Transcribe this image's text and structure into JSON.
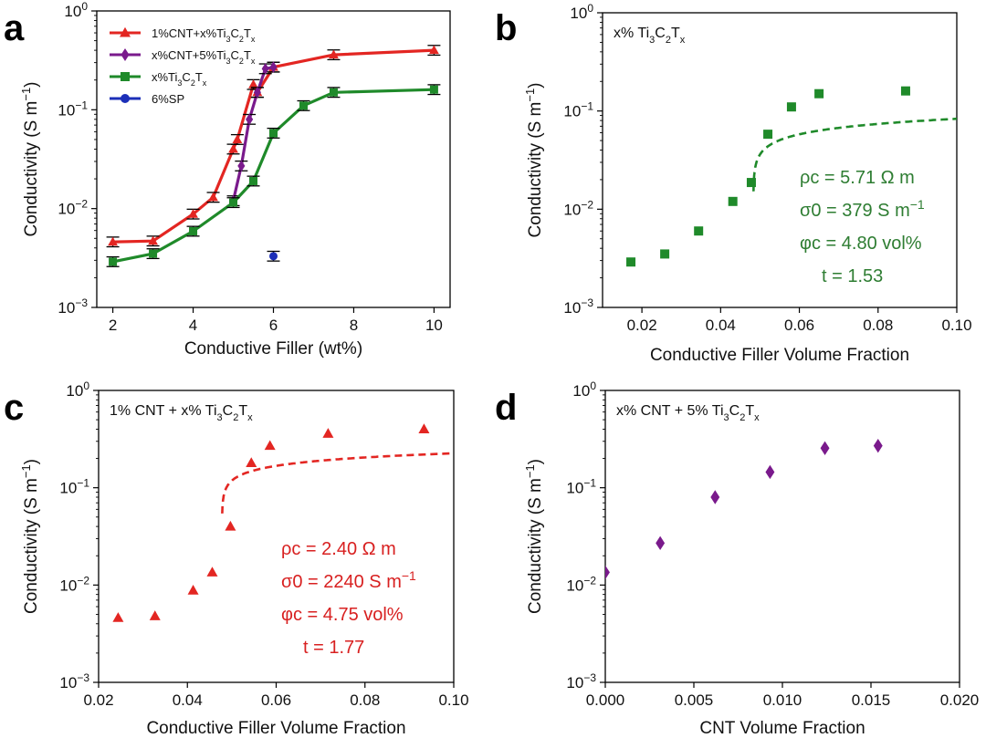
{
  "colors": {
    "red": "#e32622",
    "purple": "#7a1a8c",
    "green": "#1f8a2a",
    "blue": "#1c2fb8",
    "green_text": "#2e7d32",
    "red_text": "#d82020"
  },
  "chart_data": [
    {
      "id": "a",
      "panel_label": "a",
      "type": "line",
      "xlabel": "Conductive Filler (wt%)",
      "ylabel": "Conductivity (S m⁻¹)",
      "xlim": [
        1.6,
        10.4
      ],
      "ylim": [
        0.001,
        1
      ],
      "yscale": "log",
      "xticks": [
        2,
        4,
        6,
        8,
        10
      ],
      "xtick_labels": [
        "2",
        "4",
        "6",
        "8",
        "10"
      ],
      "legend_position": "top-left",
      "series": [
        {
          "name": "1%CNT+x%Ti₃C₂Tₓ",
          "color_key": "red",
          "marker": "triangle",
          "x": [
            2,
            3,
            4,
            4.5,
            5,
            5.1,
            5.5,
            5.6,
            6,
            7.5,
            10
          ],
          "y": [
            0.0046,
            0.0047,
            0.0088,
            0.013,
            0.04,
            0.05,
            0.18,
            0.15,
            0.27,
            0.36,
            0.4
          ]
        },
        {
          "name": "x%CNT+5%Ti₃C₂Tₓ",
          "color_key": "purple",
          "marker": "diamond",
          "x": [
            5,
            5.2,
            5.4,
            5.6,
            5.8,
            6
          ],
          "y": [
            0.012,
            0.027,
            0.08,
            0.15,
            0.26,
            0.27
          ]
        },
        {
          "name": "x%Ti₃C₂Tₓ",
          "color_key": "green",
          "marker": "square",
          "x": [
            2,
            3,
            4,
            5,
            5.5,
            6,
            6.75,
            7.5,
            10
          ],
          "y": [
            0.0029,
            0.0035,
            0.0059,
            0.0115,
            0.019,
            0.058,
            0.11,
            0.15,
            0.16
          ]
        },
        {
          "name": "6%SP",
          "color_key": "blue",
          "marker": "circle",
          "x": [
            6
          ],
          "y": [
            0.0033
          ]
        }
      ]
    },
    {
      "id": "b",
      "panel_label": "b",
      "type": "scatter",
      "title": "x% Ti₃C₂Tₓ",
      "xlabel": "Conductive Filler Volume Fraction",
      "ylabel": "Conductivity (S m⁻¹)",
      "xlim": [
        0.01,
        0.1
      ],
      "ylim": [
        0.001,
        1
      ],
      "yscale": "log",
      "xticks": [
        0.02,
        0.04,
        0.06,
        0.08,
        0.1
      ],
      "xtick_labels": [
        "0.02",
        "0.04",
        "0.06",
        "0.08",
        "0.10"
      ],
      "color_key": "green",
      "text_color_key": "green_text",
      "marker": "square",
      "x": [
        0.0172,
        0.0258,
        0.0344,
        0.0431,
        0.0478,
        0.052,
        0.058,
        0.065,
        0.087
      ],
      "y": [
        0.0029,
        0.0035,
        0.006,
        0.012,
        0.0187,
        0.058,
        0.11,
        0.15,
        0.16
      ],
      "fit": {
        "sigma0": 0.17,
        "phic": 0.0483,
        "t": 0.245,
        "x_end": 0.1
      },
      "params": [
        "ρc = 5.71 Ω m",
        "σ0 = 379 S m⁻¹",
        "φc = 4.80 vol%",
        "t = 1.53"
      ]
    },
    {
      "id": "c",
      "panel_label": "c",
      "type": "scatter",
      "title": "1% CNT + x% Ti₃C₂Tₓ",
      "xlabel": "Conductive Filler Volume Fraction",
      "ylabel": "Conductivity (S m⁻¹)",
      "xlim": [
        0.02,
        0.1
      ],
      "ylim": [
        0.001,
        1
      ],
      "yscale": "log",
      "xticks": [
        0.02,
        0.04,
        0.06,
        0.08,
        0.1
      ],
      "xtick_labels": [
        "0.02",
        "0.04",
        "0.06",
        "0.08",
        "0.10"
      ],
      "color_key": "red",
      "text_color_key": "red_text",
      "marker": "triangle",
      "x": [
        0.0244,
        0.0327,
        0.0413,
        0.0456,
        0.0497,
        0.0544,
        0.0586,
        0.0717,
        0.0933
      ],
      "y": [
        0.0046,
        0.0048,
        0.0088,
        0.0135,
        0.04,
        0.18,
        0.27,
        0.36,
        0.4
      ],
      "fit": {
        "sigma0": 0.41,
        "phic": 0.0478,
        "t": 0.205,
        "x_end": 0.1
      },
      "params": [
        "ρc = 2.40 Ω m",
        "σ0 = 2240 S m⁻¹",
        "φc = 4.75 vol%",
        "t = 1.77"
      ]
    },
    {
      "id": "d",
      "panel_label": "d",
      "type": "scatter",
      "title": "x% CNT + 5% Ti₃C₂Tₓ",
      "xlabel": "CNT Volume Fraction",
      "ylabel": "Conductivity (S m⁻¹)",
      "xlim": [
        0,
        0.02
      ],
      "ylim": [
        0.001,
        1
      ],
      "yscale": "log",
      "xticks": [
        0,
        0.005,
        0.01,
        0.015,
        0.02
      ],
      "xtick_labels": [
        "0.000",
        "0.005",
        "0.010",
        "0.015",
        "0.020"
      ],
      "color_key": "purple",
      "marker": "diamond",
      "x": [
        0,
        0.0031,
        0.0062,
        0.0093,
        0.0124,
        0.0154
      ],
      "y": [
        0.0135,
        0.027,
        0.08,
        0.145,
        0.255,
        0.27
      ]
    }
  ]
}
